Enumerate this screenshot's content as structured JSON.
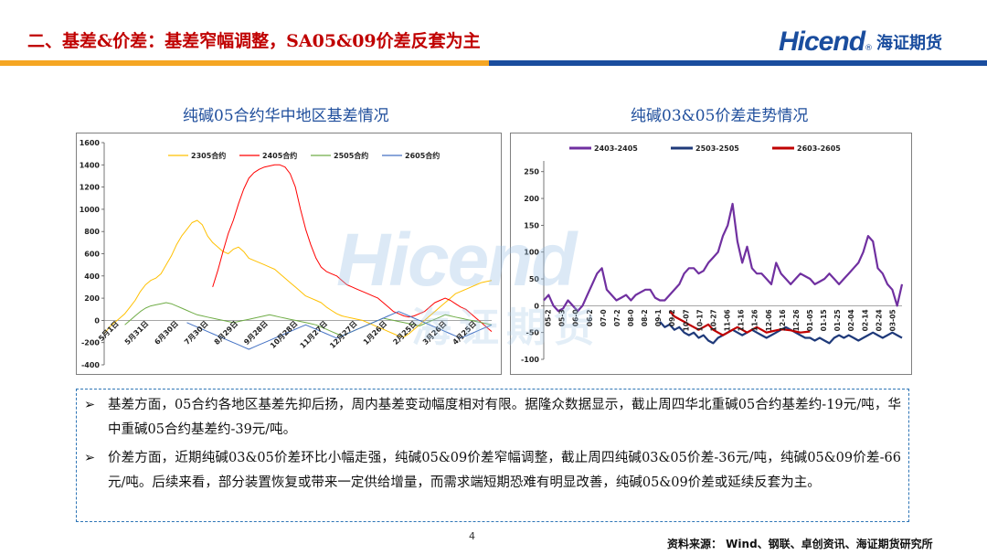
{
  "header": {
    "title": "二、基差&价差：基差窄幅调整，SA05&09价差反套为主",
    "logo_text": "Hicend",
    "logo_reg": "®",
    "logo_cn": "海证期货"
  },
  "colors": {
    "title_red": "#c00000",
    "accent_blue": "#1f4e9c",
    "stripe_orange": "#f5a623",
    "stripe_blue": "#1a4d9e"
  },
  "watermark": {
    "text": "Hicend",
    "cn": "海证期货"
  },
  "left_title": "纯碱05合约华中地区基差情况",
  "right_title": "纯碱03&05价差走势情况",
  "chart_data": [
    {
      "type": "line",
      "title": "纯碱05合约华中地区基差情况",
      "x_tick_labels": [
        "5月1日",
        "5月31日",
        "6月30日",
        "7月30日",
        "8月29日",
        "9月28日",
        "10月28日",
        "11月27日",
        "12月27日",
        "1月26日",
        "2月25日",
        "3月26日",
        "4月25日"
      ],
      "y_ticks": [
        -400,
        -200,
        0,
        200,
        400,
        600,
        800,
        1000,
        1200,
        1400,
        1600
      ],
      "ylim": [
        -400,
        1600
      ],
      "legend_position": "top",
      "series": [
        {
          "name": "2305合约",
          "color": "#ffc000",
          "values": [
            -120,
            -60,
            -20,
            20,
            60,
            120,
            180,
            260,
            320,
            360,
            380,
            420,
            500,
            580,
            680,
            760,
            820,
            880,
            900,
            860,
            760,
            700,
            660,
            620,
            600,
            640,
            660,
            620,
            560,
            540,
            520,
            500,
            480,
            460,
            420,
            380,
            340,
            300,
            260,
            220,
            200,
            180,
            160,
            120,
            90,
            60,
            40,
            30,
            20,
            10,
            0,
            -20,
            -40,
            -60,
            -80,
            -100,
            -120,
            -140,
            -150,
            -120,
            -80,
            -40,
            0,
            40,
            80,
            120,
            160,
            200,
            240,
            260,
            280,
            300,
            320,
            340,
            350,
            360
          ]
        },
        {
          "name": "2405合约",
          "color": "#ff0000",
          "values": [
            null,
            null,
            null,
            null,
            null,
            null,
            null,
            null,
            null,
            null,
            null,
            null,
            null,
            null,
            null,
            null,
            null,
            null,
            null,
            null,
            null,
            300,
            450,
            620,
            780,
            900,
            1050,
            1180,
            1280,
            1330,
            1360,
            1380,
            1390,
            1400,
            1400,
            1380,
            1320,
            1200,
            1000,
            820,
            680,
            560,
            480,
            440,
            420,
            400,
            360,
            320,
            300,
            280,
            260,
            240,
            220,
            200,
            160,
            120,
            80,
            60,
            40,
            30,
            40,
            60,
            80,
            120,
            160,
            180,
            200,
            180,
            150,
            120,
            100,
            60,
            20,
            -20,
            -60,
            -100
          ]
        },
        {
          "name": "2505合约",
          "color": "#70ad47",
          "values": [
            null,
            null,
            null,
            null,
            -40,
            0,
            40,
            80,
            110,
            130,
            140,
            150,
            160,
            150,
            130,
            110,
            90,
            70,
            50,
            40,
            30,
            20,
            10,
            0,
            -10,
            -20,
            -10,
            0,
            10,
            20,
            30,
            40,
            50,
            40,
            30,
            20,
            10,
            0,
            -10,
            -20,
            -30,
            -40,
            -60,
            -80,
            -100,
            -120,
            -140,
            -120,
            -100,
            -80,
            -60,
            -40,
            -20,
            0,
            20,
            10,
            0,
            -10,
            -20,
            -30,
            -40,
            -50,
            -30,
            -10,
            10,
            30,
            50,
            40,
            30,
            20,
            10,
            0,
            -10,
            -20,
            -30,
            -40
          ]
        },
        {
          "name": "2605合约",
          "color": "#4472c4",
          "values": [
            null,
            null,
            null,
            null,
            null,
            null,
            null,
            null,
            null,
            null,
            null,
            null,
            null,
            null,
            null,
            null,
            -20,
            -40,
            -60,
            -80,
            -100,
            -120,
            -140,
            -160,
            -180,
            -200,
            -220,
            -240,
            -260,
            -240,
            -220,
            -200,
            -180,
            -160,
            -140,
            -120,
            -100,
            -80,
            -60,
            -40,
            -60,
            -80,
            -100,
            -120,
            -140,
            -160,
            -140,
            -120,
            -100,
            -80,
            -60,
            -40,
            -20,
            0,
            20,
            40,
            60,
            80,
            60,
            40,
            20,
            0,
            -20,
            -40,
            -60,
            -80,
            -100,
            -120,
            -140,
            -160,
            -140,
            -120,
            -100,
            -80,
            -60,
            -40
          ]
        }
      ]
    },
    {
      "type": "line",
      "title": "纯碱03&05价差走势情况",
      "x_tick_labels": [
        "05-2",
        "05-3",
        "06-0",
        "06-2",
        "07-0",
        "07-2",
        "08-0",
        "08-2",
        "09-1",
        "09-2",
        "10-07",
        "10-17",
        "10-27",
        "11-06",
        "11-16",
        "11-26",
        "12-06",
        "12-16",
        "12-26",
        "01-05",
        "01-15",
        "01-25",
        "02-04",
        "02-14",
        "02-24",
        "03-05"
      ],
      "y_ticks": [
        -100,
        -50,
        0,
        50,
        100,
        150,
        200,
        250
      ],
      "ylim": [
        -100,
        270
      ],
      "legend_position": "top",
      "series": [
        {
          "name": "2403-2405",
          "color": "#7030a0",
          "values": [
            10,
            20,
            0,
            -10,
            -5,
            10,
            0,
            -10,
            0,
            20,
            40,
            60,
            70,
            30,
            20,
            10,
            15,
            20,
            10,
            20,
            25,
            30,
            30,
            15,
            10,
            10,
            20,
            30,
            40,
            60,
            70,
            70,
            60,
            65,
            80,
            90,
            100,
            130,
            150,
            190,
            120,
            80,
            110,
            70,
            60,
            60,
            50,
            40,
            80,
            60,
            50,
            40,
            50,
            60,
            55,
            50,
            40,
            45,
            50,
            60,
            50,
            40,
            50,
            60,
            70,
            80,
            100,
            130,
            120,
            70,
            60,
            40,
            30,
            0,
            40
          ]
        },
        {
          "name": "2503-2505",
          "color": "#1f3a7a",
          "values": [
            null,
            null,
            null,
            null,
            null,
            null,
            null,
            null,
            null,
            null,
            null,
            null,
            null,
            null,
            null,
            null,
            null,
            null,
            null,
            null,
            null,
            null,
            null,
            null,
            -30,
            -40,
            -35,
            -45,
            -40,
            -50,
            -55,
            -50,
            -60,
            -55,
            -65,
            -70,
            -60,
            -55,
            -50,
            -45,
            -50,
            -55,
            -50,
            -45,
            -50,
            -55,
            -60,
            -55,
            -50,
            -45,
            -40,
            -45,
            -50,
            -55,
            -60,
            -60,
            -65,
            -60,
            -65,
            -70,
            -60,
            -55,
            -60,
            -55,
            -60,
            -65,
            -60,
            -55,
            -50,
            -55,
            -60,
            -55,
            -50,
            -55,
            -60
          ]
        },
        {
          "name": "2603-2605",
          "color": "#c00000",
          "values": [
            null,
            null,
            null,
            null,
            null,
            null,
            null,
            null,
            null,
            null,
            null,
            null,
            null,
            null,
            null,
            null,
            null,
            null,
            null,
            null,
            null,
            null,
            null,
            null,
            null,
            null,
            -10,
            -20,
            -25,
            -30,
            -35,
            -40,
            -45,
            -40,
            -35,
            -45,
            -50,
            -55,
            -50,
            -45,
            -40,
            -45,
            -50,
            -45,
            -40,
            -45,
            -50,
            -48,
            -46,
            -44,
            -45,
            -46,
            -48,
            -50,
            -49,
            -48,
            null,
            null,
            null,
            null,
            null,
            null,
            null,
            null,
            null,
            null,
            null,
            null,
            null,
            null,
            null,
            null,
            null,
            null,
            null
          ]
        }
      ]
    }
  ],
  "bullets": [
    "基差方面，05合约各地区基差先抑后扬，周内基差变动幅度相对有限。据隆众数据显示，截止周四华北重碱05合约基差约-19元/吨，华中重碱05合约基差约-39元/吨。",
    "价差方面，近期纯碱03&05价差环比小幅走强，纯碱05&09价差窄幅调整，截止周四纯碱03&05价差-36元/吨，纯碱05&09价差-66元/吨。后续来看，部分装置恢复或带来一定供给增量，而需求端短期恐难有明显改善，纯碱05&09价差或延续反套为主。"
  ],
  "bullet_mark": "➢",
  "page_number": "4",
  "source_note": "资料来源：  Wind、钢联、卓创资讯、海证期货研究所"
}
